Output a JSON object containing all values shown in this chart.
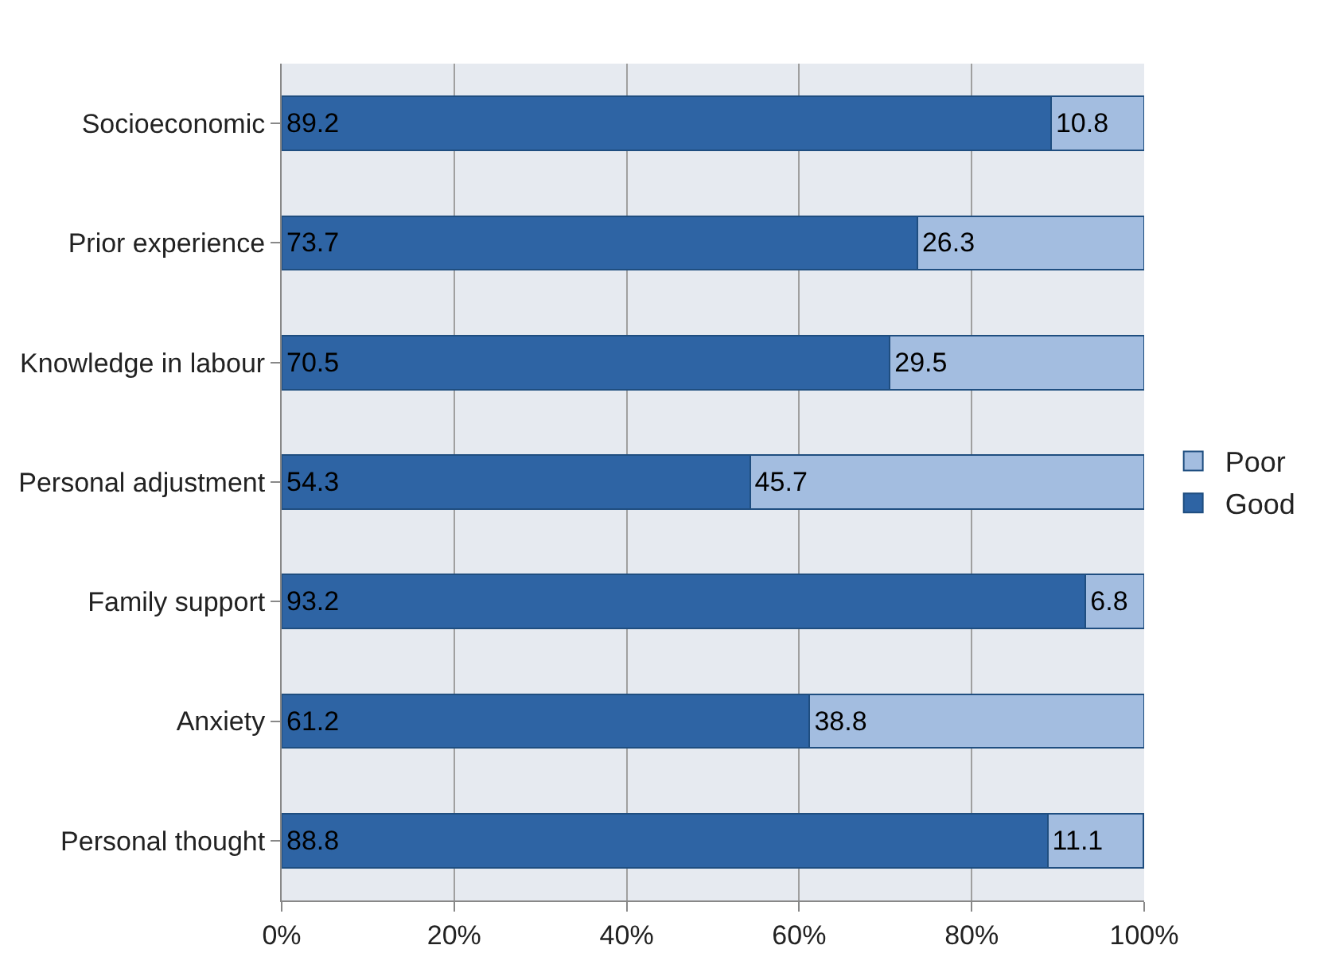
{
  "chart_data": {
    "type": "bar",
    "orientation": "horizontal",
    "stacked": true,
    "data_labels": true,
    "categories": [
      "Socioeconomic",
      "Prior experience",
      "Knowledge in labour",
      "Personal adjustment",
      "Family support",
      "Anxiety",
      "Personal thought"
    ],
    "series": [
      {
        "name": "Good",
        "color": "#2e64a4",
        "values": [
          89.2,
          73.7,
          70.5,
          54.3,
          93.2,
          61.2,
          88.8
        ]
      },
      {
        "name": "Poor",
        "color": "#a3bde0",
        "values": [
          10.8,
          26.3,
          29.5,
          45.7,
          6.8,
          38.8,
          11.1
        ]
      }
    ],
    "xlim": [
      0,
      100
    ],
    "xticks": [
      {
        "value": 0,
        "label": "0%"
      },
      {
        "value": 20,
        "label": "20%"
      },
      {
        "value": 40,
        "label": "40%"
      },
      {
        "value": 60,
        "label": "60%"
      },
      {
        "value": 80,
        "label": "80%"
      },
      {
        "value": 100,
        "label": "100%"
      }
    ],
    "grid": "x",
    "legend": "right"
  }
}
